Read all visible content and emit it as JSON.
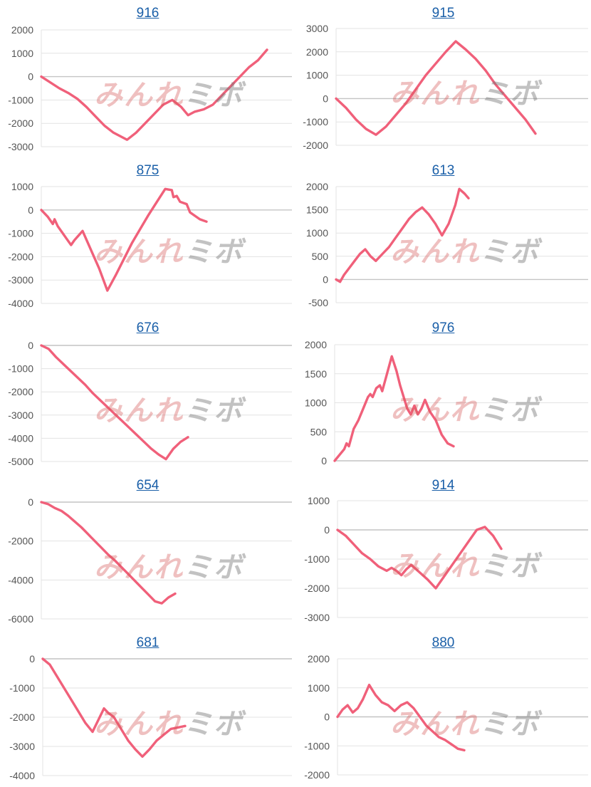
{
  "watermark": {
    "part_a": "みんれ",
    "part_b": "ミボ"
  },
  "colors": {
    "line": "#f0607a",
    "title": "#1a5fa8",
    "grid": "#e3e3e3",
    "zero": "#c4c4c4"
  },
  "chart_data": [
    {
      "type": "line",
      "title": "916",
      "ylim": [
        -3000,
        2000
      ],
      "ticks": [
        2000,
        1000,
        0,
        -1000,
        -2000,
        -3000
      ],
      "tick_labels": [
        "2000",
        "1000",
        "0",
        "-1000",
        "-2000",
        "-3000"
      ],
      "x": [
        0,
        8,
        12,
        16,
        20,
        24,
        28,
        32,
        38,
        42,
        46,
        50,
        54,
        58,
        62,
        65,
        68,
        72,
        76,
        80,
        84,
        88,
        92,
        96,
        100
      ],
      "values": [
        0,
        -500,
        -700,
        -950,
        -1300,
        -1700,
        -2100,
        -2400,
        -2700,
        -2400,
        -2000,
        -1600,
        -1200,
        -1000,
        -1300,
        -1650,
        -1500,
        -1400,
        -1200,
        -800,
        -400,
        0,
        400,
        700,
        1150
      ]
    },
    {
      "type": "line",
      "title": "915",
      "ylim": [
        -2000,
        3000
      ],
      "ticks": [
        3000,
        2000,
        1000,
        0,
        -1000,
        -2000
      ],
      "tick_labels": [
        "3000",
        "2000",
        "1000",
        "0",
        "-1000",
        "-2000"
      ],
      "x": [
        0,
        5,
        10,
        15,
        20,
        25,
        30,
        35,
        40,
        45,
        50,
        55,
        60,
        65,
        70,
        75,
        80,
        85,
        90,
        95,
        100
      ],
      "values": [
        0,
        -400,
        -900,
        -1300,
        -1550,
        -1200,
        -700,
        -200,
        400,
        1000,
        1500,
        2000,
        2450,
        2100,
        1700,
        1200,
        600,
        100,
        -400,
        -900,
        -1500
      ]
    },
    {
      "type": "line",
      "title": "875",
      "ylim": [
        -4000,
        1000
      ],
      "ticks": [
        1000,
        0,
        -1000,
        -2000,
        -3000,
        -4000
      ],
      "tick_labels": [
        "1000",
        "0",
        "-1000",
        "-2000",
        "-3000",
        "-4000"
      ],
      "x": [
        0,
        4,
        7,
        8,
        10,
        13,
        15,
        18,
        20,
        25,
        30,
        35,
        40,
        45,
        50,
        55,
        60,
        65,
        70,
        75,
        79,
        80,
        82,
        84,
        88,
        90,
        92,
        96,
        100
      ],
      "values": [
        0,
        -300,
        -600,
        -400,
        -700,
        -1000,
        -1200,
        -1500,
        -1300,
        -900,
        -1700,
        -2500,
        -3450,
        -2800,
        -2100,
        -1400,
        -800,
        -200,
        350,
        900,
        850,
        550,
        600,
        350,
        250,
        -100,
        -200,
        -400,
        -500
      ]
    },
    {
      "type": "line",
      "title": "613",
      "ylim": [
        -500,
        2000
      ],
      "ticks": [
        2000,
        1500,
        1000,
        500,
        0,
        -500
      ],
      "tick_labels": [
        "2000",
        "1500",
        "1000",
        "500",
        "0",
        "-500"
      ],
      "x": [
        0,
        3,
        6,
        10,
        14,
        18,
        22,
        26,
        30,
        35,
        40,
        45,
        50,
        55,
        60,
        65,
        70,
        75,
        80,
        85,
        90,
        93,
        97,
        100
      ],
      "values": [
        0,
        -50,
        100,
        250,
        400,
        550,
        650,
        500,
        400,
        550,
        700,
        900,
        1100,
        1300,
        1450,
        1550,
        1400,
        1200,
        950,
        1200,
        1600,
        1950,
        1850,
        1750
      ]
    },
    {
      "type": "line",
      "title": "676",
      "ylim": [
        -5000,
        0
      ],
      "ticks": [
        0,
        -1000,
        -2000,
        -3000,
        -4000,
        -5000
      ],
      "tick_labels": [
        "0",
        "-1000",
        "-2000",
        "-3000",
        "-4000",
        "-5000"
      ],
      "x": [
        0,
        5,
        10,
        15,
        20,
        25,
        30,
        35,
        40,
        45,
        50,
        55,
        60,
        65,
        70,
        75,
        80,
        85,
        90,
        95,
        100
      ],
      "values": [
        0,
        -150,
        -500,
        -800,
        -1100,
        -1400,
        -1700,
        -2050,
        -2350,
        -2650,
        -2950,
        -3250,
        -3550,
        -3850,
        -4150,
        -4450,
        -4700,
        -4900,
        -4450,
        -4150,
        -3950
      ]
    },
    {
      "type": "line",
      "title": "976",
      "ylim": [
        0,
        2000
      ],
      "ticks": [
        2000,
        1500,
        1000,
        500,
        0
      ],
      "tick_labels": [
        "2000",
        "1500",
        "1000",
        "500",
        "0"
      ],
      "x": [
        0,
        4,
        8,
        10,
        12,
        16,
        20,
        24,
        28,
        30,
        32,
        35,
        38,
        40,
        44,
        48,
        52,
        55,
        58,
        61,
        64,
        67,
        70,
        73,
        76,
        80,
        85,
        90,
        95,
        100
      ],
      "values": [
        0,
        100,
        200,
        300,
        250,
        550,
        700,
        900,
        1100,
        1150,
        1100,
        1250,
        1300,
        1200,
        1500,
        1800,
        1550,
        1300,
        1100,
        900,
        800,
        950,
        800,
        900,
        1050,
        850,
        700,
        450,
        300,
        250
      ]
    },
    {
      "type": "line",
      "title": "654",
      "ylim": [
        -6000,
        0
      ],
      "ticks": [
        0,
        -2000,
        -4000,
        -6000
      ],
      "tick_labels": [
        "0",
        "-2000",
        "-4000",
        "-6000"
      ],
      "x": [
        0,
        5,
        10,
        15,
        20,
        25,
        30,
        35,
        40,
        45,
        50,
        55,
        60,
        65,
        70,
        75,
        80,
        85,
        90,
        95,
        100
      ],
      "values": [
        0,
        -100,
        -300,
        -450,
        -700,
        -1000,
        -1300,
        -1650,
        -2000,
        -2350,
        -2700,
        -3000,
        -3350,
        -3700,
        -4050,
        -4400,
        -4750,
        -5100,
        -5200,
        -4900,
        -4700
      ]
    },
    {
      "type": "line",
      "title": "914",
      "ylim": [
        -3000,
        1000
      ],
      "ticks": [
        1000,
        0,
        -1000,
        -2000,
        -3000
      ],
      "tick_labels": [
        "1000",
        "0",
        "-1000",
        "-2000",
        "-3000"
      ],
      "x": [
        0,
        5,
        10,
        15,
        20,
        25,
        30,
        33,
        36,
        39,
        42,
        45,
        50,
        55,
        60,
        65,
        70,
        75,
        80,
        85,
        90,
        95,
        100
      ],
      "values": [
        0,
        -200,
        -500,
        -800,
        -1000,
        -1250,
        -1400,
        -1300,
        -1400,
        -1550,
        -1350,
        -1200,
        -1450,
        -1700,
        -2000,
        -1600,
        -1200,
        -800,
        -400,
        0,
        100,
        -200,
        -650
      ]
    },
    {
      "type": "line",
      "title": "681",
      "ylim": [
        -4000,
        0
      ],
      "ticks": [
        0,
        -1000,
        -2000,
        -3000,
        -4000
      ],
      "tick_labels": [
        "0",
        "-1000",
        "-2000",
        "-3000",
        "-4000"
      ],
      "x": [
        0,
        5,
        10,
        15,
        20,
        25,
        30,
        35,
        40,
        43,
        46,
        50,
        55,
        60,
        65,
        70,
        75,
        80,
        85,
        90,
        95,
        100
      ],
      "values": [
        0,
        -200,
        -600,
        -1000,
        -1400,
        -1800,
        -2200,
        -2500,
        -2000,
        -1700,
        -1850,
        -2000,
        -2400,
        -2800,
        -3100,
        -3350,
        -3100,
        -2800,
        -2600,
        -2400,
        -2350,
        -2300
      ]
    },
    {
      "type": "line",
      "title": "880",
      "ylim": [
        -2000,
        2000
      ],
      "ticks": [
        2000,
        1000,
        0,
        -1000,
        -2000
      ],
      "tick_labels": [
        "2000",
        "1000",
        "0",
        "-1000",
        "-2000"
      ],
      "x": [
        0,
        4,
        8,
        12,
        16,
        20,
        25,
        30,
        35,
        40,
        45,
        50,
        55,
        60,
        65,
        70,
        75,
        80,
        85,
        90,
        95,
        100
      ],
      "values": [
        0,
        250,
        400,
        150,
        300,
        600,
        1100,
        750,
        500,
        400,
        200,
        400,
        500,
        300,
        0,
        -300,
        -500,
        -700,
        -800,
        -950,
        -1100,
        -1150
      ]
    }
  ]
}
